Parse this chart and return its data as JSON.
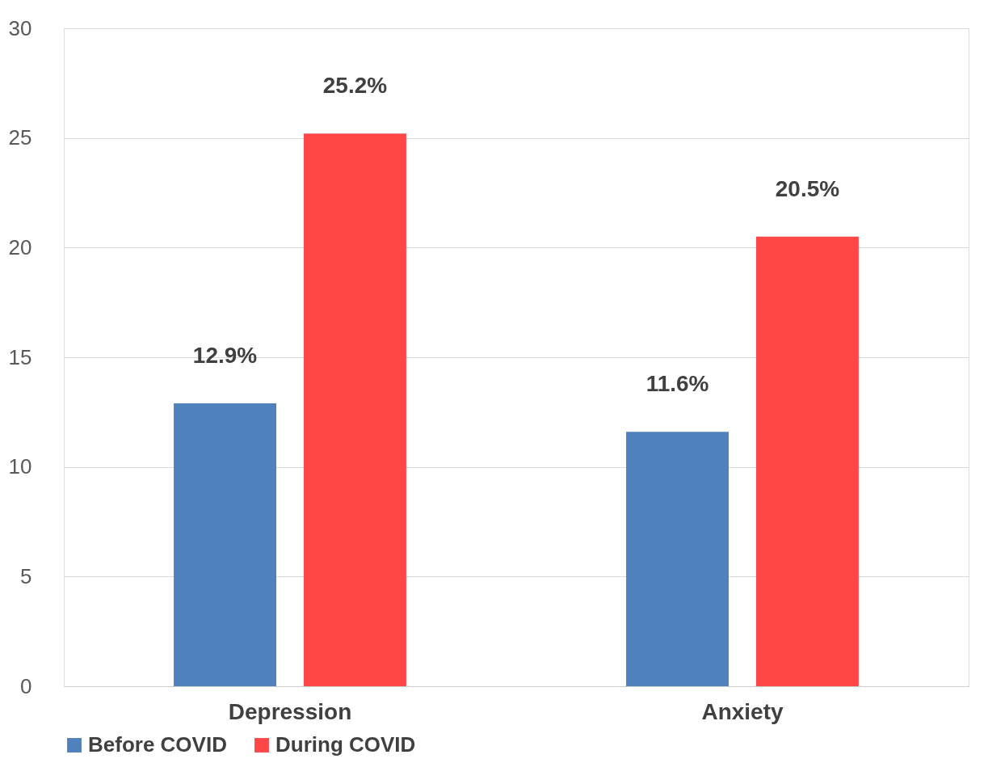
{
  "chart_data": {
    "type": "bar",
    "categories": [
      "Depression",
      "Anxiety"
    ],
    "series": [
      {
        "name": "Before COVID",
        "color": "#4f81bd",
        "values": [
          12.9,
          11.6
        ],
        "value_labels": [
          "12.9%",
          "11.6%"
        ]
      },
      {
        "name": "During COVID",
        "color": "#ff4747",
        "values": [
          25.2,
          20.5
        ],
        "value_labels": [
          "25.2%",
          "20.5%"
        ]
      }
    ],
    "ylim": [
      0,
      30
    ],
    "yticks": [
      0,
      5,
      10,
      15,
      20,
      25,
      30
    ],
    "grid": "y",
    "legend": "bottom"
  }
}
